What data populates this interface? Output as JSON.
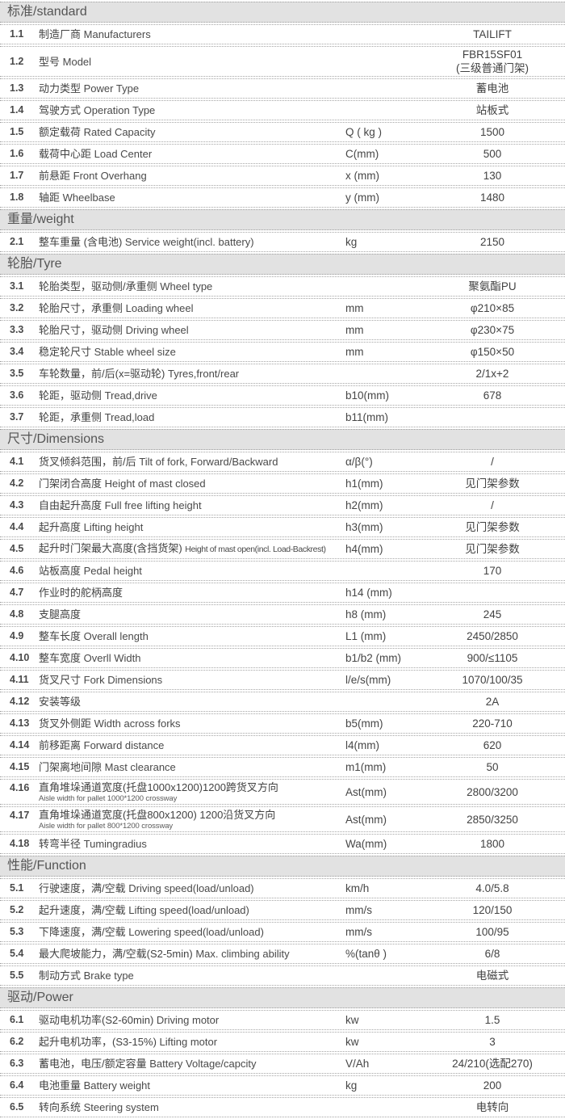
{
  "document_title": "FBR15SF01 specification table",
  "colors": {
    "section_header_bg": "#e2e2e2",
    "text": "#454545",
    "dotted_line": "#9f9f9f"
  },
  "sections": [
    {
      "title": "标准/standard",
      "rows": [
        {
          "no": "1.1",
          "cn": "制造厂商",
          "en": "Manufacturers",
          "sym": "",
          "val": "TAILIFT"
        },
        {
          "no": "1.2",
          "cn": "型号",
          "en": "Model",
          "sym": "",
          "val": "FBR15SF01",
          "val2": "(三级普通门架)"
        },
        {
          "no": "1.3",
          "cn": "动力类型",
          "en": "Power Type",
          "sym": "",
          "val": "蓄电池"
        },
        {
          "no": "1.4",
          "cn": "驾驶方式",
          "en": "Operation Type",
          "sym": "",
          "val": "站板式"
        },
        {
          "no": "1.5",
          "cn": "额定载荷",
          "en": "Rated Capacity",
          "sym": "Q ( kg )",
          "val": "1500"
        },
        {
          "no": "1.6",
          "cn": "载荷中心距",
          "en": "Load Center",
          "sym": "C(mm)",
          "val": "500"
        },
        {
          "no": "1.7",
          "cn": "前悬距",
          "en": "Front Overhang",
          "sym": "x (mm)",
          "val": "130"
        },
        {
          "no": "1.8",
          "cn": "轴距",
          "en": "Wheelbase",
          "sym": "y (mm)",
          "val": "1480"
        }
      ]
    },
    {
      "title": "重量/weight",
      "rows": [
        {
          "no": "2.1",
          "cn": "整车重量 (含电池)",
          "en": "Service weight(incl. battery)",
          "sym": "kg",
          "val": "2150"
        }
      ]
    },
    {
      "title": "轮胎/Tyre",
      "rows": [
        {
          "no": "3.1",
          "cn": "轮胎类型，驱动侧/承重侧",
          "en": "Wheel type",
          "sym": "",
          "val": "聚氨酯PU"
        },
        {
          "no": "3.2",
          "cn": "轮胎尺寸，承重侧",
          "en": "Loading wheel",
          "sym": "mm",
          "val": "φ210×85"
        },
        {
          "no": "3.3",
          "cn": "轮胎尺寸，驱动侧",
          "en": "Driving wheel",
          "sym": "mm",
          "val": "φ230×75"
        },
        {
          "no": "3.4",
          "cn": "稳定轮尺寸",
          "en": "Stable wheel size",
          "sym": "mm",
          "val": "φ150×50"
        },
        {
          "no": "3.5",
          "cn": "车轮数量，前/后(x=驱动轮)",
          "en": "Tyres,front/rear",
          "sym": "",
          "val": "2/1x+2"
        },
        {
          "no": "3.6",
          "cn": "轮距，驱动侧",
          "en": "Tread,drive",
          "sym": "b10(mm)",
          "val": "678"
        },
        {
          "no": "3.7",
          "cn": "轮距，承重侧",
          "en": "Tread,load",
          "sym": "b11(mm)",
          "val": ""
        }
      ]
    },
    {
      "title": "尺寸/Dimensions",
      "rows": [
        {
          "no": "4.1",
          "cn": "货叉倾斜范围，前/后",
          "en": "Tilt of fork, Forward/Backward",
          "sym": "α/β(°)",
          "val": "/"
        },
        {
          "no": "4.2",
          "cn": "门架闭合高度",
          "en": "Height of mast closed",
          "sym": "h1(mm)",
          "val": "见门架参数"
        },
        {
          "no": "4.3",
          "cn": "自由起升高度",
          "en": "Full free lifting height",
          "sym": "h2(mm)",
          "val": "/"
        },
        {
          "no": "4.4",
          "cn": "起升高度",
          "en": "Lifting height",
          "sym": "h3(mm)",
          "val": "见门架参数"
        },
        {
          "no": "4.5",
          "cn": "起升时门架最大高度(含挡货架)",
          "en": "Height of mast open(incl. Load-Backrest)",
          "sym": "h4(mm)",
          "val": "见门架参数",
          "compact": true
        },
        {
          "no": "4.6",
          "cn": "站板高度",
          "en": "Pedal height",
          "sym": "",
          "val": "170"
        },
        {
          "no": "4.7",
          "cn": "作业时的舵柄高度",
          "en": "",
          "sym": "h14 (mm)",
          "val": ""
        },
        {
          "no": "4.8",
          "cn": "支腿高度",
          "en": "",
          "sym": "h8 (mm)",
          "val": "245"
        },
        {
          "no": "4.9",
          "cn": "整车长度",
          "en": "Overall length",
          "sym": "L1 (mm)",
          "val": "2450/2850"
        },
        {
          "no": "4.10",
          "cn": "整车宽度",
          "en": "Overll Width",
          "sym": "b1/b2 (mm)",
          "val": "900/≤1105"
        },
        {
          "no": "4.11",
          "cn": "货叉尺寸",
          "en": "Fork Dimensions",
          "sym": "l/e/s(mm)",
          "val": "1070/100/35"
        },
        {
          "no": "4.12",
          "cn": "安装等级",
          "en": "",
          "sym": "",
          "val": "2A"
        },
        {
          "no": "4.13",
          "cn": "货叉外侧距",
          "en": "Width across forks",
          "sym": "b5(mm)",
          "val": "220-710"
        },
        {
          "no": "4.14",
          "cn": "前移距离",
          "en": "Forward distance",
          "sym": "l4(mm)",
          "val": "620"
        },
        {
          "no": "4.15",
          "cn": "门架离地间隙",
          "en": "Mast clearance",
          "sym": "m1(mm)",
          "val": "50"
        },
        {
          "no": "4.16",
          "cn": "直角堆垛通道宽度(托盘1000x1200)1200跨货叉方向",
          "en": "",
          "note": "Aisle width for pallet 1000*1200 crossway",
          "sym": "Ast(mm)",
          "val": "2800/3200"
        },
        {
          "no": "4.17",
          "cn": "直角堆垛通道宽度(托盘800x1200) 1200沿货叉方向",
          "en": "",
          "note": "Aisle width for pallet 800*1200 crossway",
          "sym": "Ast(mm)",
          "val": "2850/3250"
        },
        {
          "no": "4.18",
          "cn": "转弯半径",
          "en": "Tumingradius",
          "sym": "Wa(mm)",
          "val": "1800"
        }
      ]
    },
    {
      "title": "性能/Function",
      "rows": [
        {
          "no": "5.1",
          "cn": "行驶速度，满/空载",
          "en": "Driving speed(load/unload)",
          "sym": "km/h",
          "val": "4.0/5.8"
        },
        {
          "no": "5.2",
          "cn": "起升速度，满/空载",
          "en": "Lifting speed(load/unload)",
          "sym": "mm/s",
          "val": "120/150"
        },
        {
          "no": "5.3",
          "cn": "下降速度，满/空载",
          "en": "Lowering speed(load/unload)",
          "sym": "mm/s",
          "val": "100/95"
        },
        {
          "no": "5.4",
          "cn": "最大爬坡能力，满/空载(S2-5min)",
          "en": "Max. climbing ability",
          "sym": "%(tanθ )",
          "val": "6/8"
        },
        {
          "no": "5.5",
          "cn": "制动方式",
          "en": "Brake type",
          "sym": "",
          "val": "电磁式"
        }
      ]
    },
    {
      "title": "驱动/Power",
      "rows": [
        {
          "no": "6.1",
          "cn": "驱动电机功率(S2-60min)",
          "en": "Driving motor",
          "sym": "kw",
          "val": "1.5"
        },
        {
          "no": "6.2",
          "cn": "起升电机功率，(S3-15%)",
          "en": "Lifting motor",
          "sym": "kw",
          "val": "3"
        },
        {
          "no": "6.3",
          "cn": "蓄电池，电压/额定容量",
          "en": "Battery Voltage/capcity",
          "sym": "V/Ah",
          "val": "24/210(选配270)"
        },
        {
          "no": "6.4",
          "cn": "电池重量",
          "en": "Battery weight",
          "sym": "kg",
          "val": "200"
        },
        {
          "no": "6.5",
          "cn": "转向系统",
          "en": "Steering system",
          "sym": "",
          "val": "电转向"
        }
      ]
    }
  ]
}
